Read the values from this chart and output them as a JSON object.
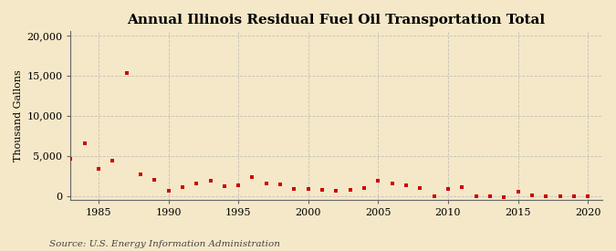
{
  "title": "Annual Illinois Residual Fuel Oil Transportation Total",
  "ylabel": "Thousand Gallons",
  "source": "Source: U.S. Energy Information Administration",
  "background_color": "#f5e8c8",
  "plot_background_color": "#fdf8ee",
  "grid_color": "#b0b0b0",
  "marker_color": "#cc0000",
  "xlim": [
    1983,
    2021
  ],
  "ylim": [
    -500,
    20500
  ],
  "yticks": [
    0,
    5000,
    10000,
    15000,
    20000
  ],
  "xticks": [
    1985,
    1990,
    1995,
    2000,
    2005,
    2010,
    2015,
    2020
  ],
  "years": [
    1983,
    1984,
    1985,
    1986,
    1987,
    1988,
    1989,
    1990,
    1991,
    1992,
    1993,
    1994,
    1995,
    1996,
    1997,
    1998,
    1999,
    2000,
    2001,
    2002,
    2003,
    2004,
    2005,
    2006,
    2007,
    2008,
    2009,
    2010,
    2011,
    2012,
    2013,
    2014,
    2015,
    2016,
    2017,
    2018,
    2019,
    2020
  ],
  "values": [
    4600,
    6500,
    3400,
    4400,
    15300,
    2700,
    2000,
    600,
    1100,
    1500,
    1900,
    1200,
    1300,
    2300,
    1600,
    1400,
    900,
    900,
    700,
    600,
    700,
    1000,
    1900,
    1600,
    1300,
    1000,
    -100,
    900,
    1100,
    -100,
    -100,
    -200,
    500,
    100,
    -100,
    -100,
    -100,
    -100
  ],
  "title_fontsize": 11,
  "tick_fontsize": 8,
  "ylabel_fontsize": 8,
  "source_fontsize": 7.5
}
